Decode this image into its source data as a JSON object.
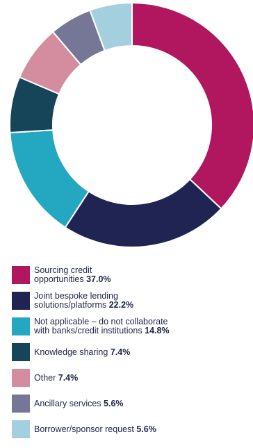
{
  "chart_data": {
    "type": "pie",
    "donut": true,
    "start_angle_deg": 0,
    "direction": "clockwise",
    "legend_position": "bottom",
    "series": [
      {
        "label_lines": [
          "Sourcing credit",
          "opportunities"
        ],
        "value": 37.0,
        "value_label": "37.0%",
        "color": "#b0175e"
      },
      {
        "label_lines": [
          "Joint bespoke lending",
          "solutions/platforms"
        ],
        "value": 22.2,
        "value_label": "22.2%",
        "color": "#1f2452"
      },
      {
        "label_lines": [
          "Not applicable – do not collaborate",
          "with banks/credit institutions"
        ],
        "value": 14.8,
        "value_label": "14.8%",
        "color": "#24a8c1"
      },
      {
        "label_lines": [
          "Knowledge sharing"
        ],
        "value": 7.4,
        "value_label": "7.4%",
        "color": "#164559"
      },
      {
        "label_lines": [
          "Other"
        ],
        "value": 7.4,
        "value_label": "7.4%",
        "color": "#d48c9f"
      },
      {
        "label_lines": [
          "Ancillary services"
        ],
        "value": 5.6,
        "value_label": "5.6%",
        "color": "#767696"
      },
      {
        "label_lines": [
          "Borrower/sponsor request"
        ],
        "value": 5.6,
        "value_label": "5.6%",
        "color": "#a3cfdf"
      }
    ]
  }
}
